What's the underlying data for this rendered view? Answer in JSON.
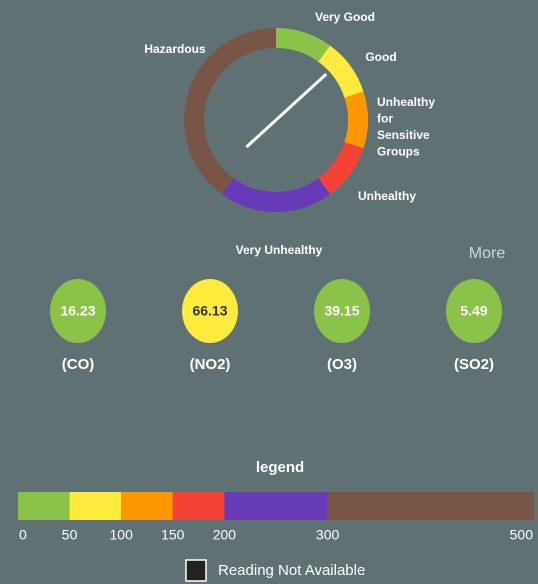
{
  "gauge_labels": [
    {
      "lines": [
        "Very Good"
      ]
    },
    {
      "lines": [
        "Good"
      ]
    },
    {
      "lines": [
        "Unhealthy",
        "for",
        "Sensitive",
        "Groups"
      ]
    },
    {
      "lines": [
        "Unhealthy"
      ]
    },
    {
      "lines": [
        "Very Unhealthy"
      ]
    },
    {
      "lines": [
        "Hazardous"
      ]
    }
  ],
  "readings": [
    {
      "value": 16.23,
      "name": "(CO)",
      "color": "#8bc34a",
      "text_color": "#ffffff"
    },
    {
      "value": 66.13,
      "name": "(NO2)",
      "color": "#ffeb3b",
      "text_color": "#333333"
    },
    {
      "value": 39.15,
      "name": "(O3)",
      "color": "#8bc34a",
      "text_color": "#ffffff"
    },
    {
      "value": 5.49,
      "name": "(SO2)",
      "color": "#8bc34a",
      "text_color": "#ffffff"
    }
  ],
  "more": "More",
  "legend": {
    "title": "legend",
    "stops": [
      0,
      50,
      100,
      150,
      200,
      300,
      500
    ],
    "colors": [
      "#8bc34a",
      "#ffeb3b",
      "#ff9800",
      "#f44336",
      "#673ab7",
      "#795548"
    ]
  },
  "not_available": "Reading Not Available"
}
